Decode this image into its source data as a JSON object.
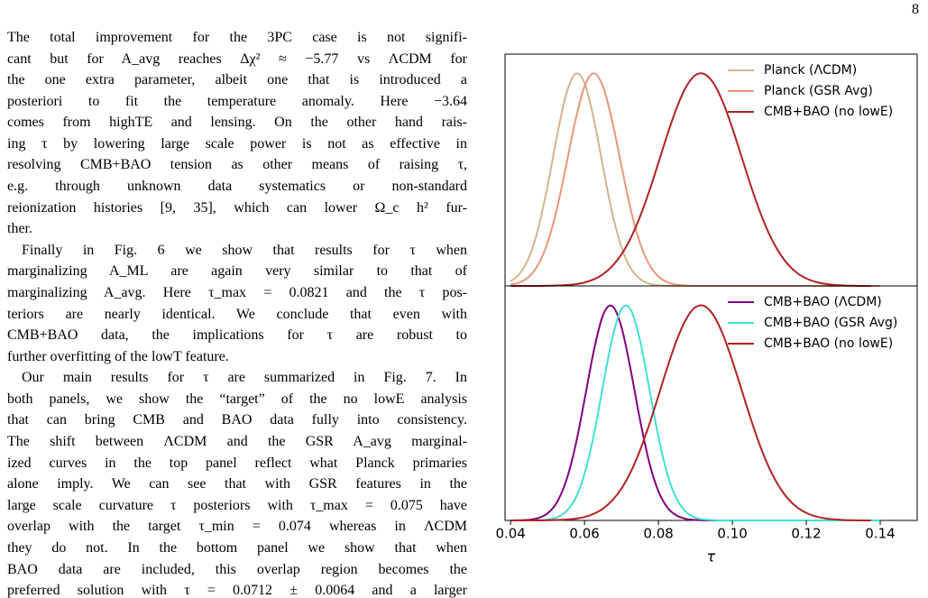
{
  "page_number": "8",
  "paragraphs": [
    [
      "The total improvement for the 3PC case is not signifi-",
      "cant but for A_avg reaches Δχ² ≈ −5.77 vs ΛCDM for",
      "the one extra parameter, albeit one that is introduced a",
      "posteriori to fit the temperature anomaly. Here −3.64",
      "comes from highTE and lensing. On the other hand rais-",
      "ing τ by lowering large scale power is not as effective in",
      "resolving CMB+BAO tension as other means of raising τ,",
      "e.g. through unknown data systematics or non-standard",
      "reionization histories [9, 35], which can lower Ω_c h² fur-",
      "ther."
    ],
    [
      "Finally in Fig. 6 we show that results for τ when",
      "marginalizing A_ML are again very similar to that of",
      "marginalizing A_avg. Here τ_max = 0.0821 and the τ pos-",
      "teriors are nearly identical. We conclude that even with",
      "CMB+BAO data, the implications for τ are robust to",
      "further overfitting of the lowT feature."
    ],
    [
      "Our main results for τ are summarized in Fig. 7. In",
      "both panels, we show the “target” of the no lowE analysis",
      "that can bring CMB and BAO data fully into consistency.",
      "The shift between ΛCDM and the GSR A_avg marginal-",
      "ized curves in the top panel reflect what Planck primaries",
      "alone imply. We can see that with GSR features in the",
      "large scale curvature τ posteriors with τ_max = 0.075 have",
      "overlap with the target τ_min = 0.074 whereas in ΛCDM",
      "they do not. In the bottom panel we show that when",
      "BAO data are included, this overlap region becomes the",
      "preferred solution with τ = 0.0712 ± 0.0064 and a larger"
    ]
  ],
  "chart_data": [
    {
      "type": "line",
      "legend": "upper right",
      "x": [
        0.04,
        0.0425,
        0.045,
        0.0475,
        0.05,
        0.0525,
        0.055,
        0.0575,
        0.06,
        0.0625,
        0.065,
        0.0675,
        0.07,
        0.0725,
        0.075,
        0.0775,
        0.08,
        0.0825,
        0.085,
        0.0875,
        0.09,
        0.0925,
        0.095,
        0.0975,
        0.1,
        0.1025,
        0.105,
        0.1075,
        0.11,
        0.1125,
        0.115,
        0.1175,
        0.12,
        0.1225,
        0.125,
        0.1275,
        0.13,
        0.1325,
        0.135,
        0.1375,
        0.14
      ],
      "xlim": [
        0.0385,
        0.15
      ],
      "ylim": [
        0,
        1.09
      ],
      "series": [
        {
          "name": "Planck (ΛCDM)",
          "color": "#d2b48c",
          "values": [
            0.022,
            0.058,
            0.135,
            0.271,
            0.469,
            0.699,
            0.899,
            0.997,
            0.954,
            0.787,
            0.56,
            0.343,
            0.182,
            0.083,
            0.033,
            0.011,
            0.003,
            0.001,
            0,
            0,
            0,
            0,
            0,
            0,
            0,
            0,
            0,
            0,
            0,
            0,
            0,
            0,
            0,
            0,
            0,
            0,
            0,
            0,
            0,
            0,
            0
          ]
        },
        {
          "name": "Planck (GSR Avg)",
          "color": "#e9967a",
          "values": [
            0.006,
            0.017,
            0.044,
            0.101,
            0.203,
            0.36,
            0.564,
            0.775,
            0.938,
            1,
            0.938,
            0.775,
            0.564,
            0.36,
            0.203,
            0.101,
            0.044,
            0.017,
            0.006,
            0.002,
            0,
            0,
            0,
            0,
            0,
            0,
            0,
            0,
            0,
            0,
            0,
            0,
            0,
            0,
            0,
            0,
            0,
            0,
            0,
            0,
            0
          ]
        },
        {
          "name": "CMB+BAO (no lowE)",
          "color": "#b22222",
          "values": [
            0,
            0,
            0,
            0,
            0.001,
            0.002,
            0.004,
            0.008,
            0.016,
            0.031,
            0.055,
            0.093,
            0.148,
            0.225,
            0.325,
            0.445,
            0.579,
            0.716,
            0.84,
            0.936,
            0.991,
            0.996,
            0.951,
            0.862,
            0.742,
            0.607,
            0.471,
            0.347,
            0.243,
            0.162,
            0.102,
            0.061,
            0.035,
            0.019,
            0.01,
            0.005,
            0.002,
            0.001,
            0,
            0,
            null
          ]
        }
      ]
    },
    {
      "type": "line",
      "legend": "upper right",
      "xlabel": "τ",
      "x": [
        0.04,
        0.0425,
        0.045,
        0.0475,
        0.05,
        0.0525,
        0.055,
        0.0575,
        0.06,
        0.0625,
        0.065,
        0.0675,
        0.07,
        0.0725,
        0.075,
        0.0775,
        0.08,
        0.0825,
        0.085,
        0.0875,
        0.09,
        0.0925,
        0.095,
        0.0975,
        0.1,
        0.1025,
        0.105,
        0.1075,
        0.11,
        0.1125,
        0.115,
        0.1175,
        0.12,
        0.1225,
        0.125,
        0.1275,
        0.13,
        0.1325,
        0.135,
        0.1375,
        0.14
      ],
      "xlim": [
        0.0385,
        0.15
      ],
      "ylim": [
        0,
        1.09
      ],
      "xticks": [
        0.04,
        0.06,
        0.08,
        {
          "value": 0.1,
          "label": "0.10"
        },
        0.12,
        0.14
      ],
      "series": [
        {
          "name": "CMB+BAO (ΛCDM)",
          "color": "#800080",
          "values": [
            0,
            0.001,
            0.003,
            0.011,
            0.033,
            0.083,
            0.182,
            0.343,
            0.56,
            0.787,
            0.954,
            0.997,
            0.899,
            0.699,
            0.469,
            0.271,
            0.135,
            0.058,
            0.022,
            0.007,
            0.002,
            0,
            0,
            0,
            0,
            0,
            0,
            0,
            0,
            0,
            0,
            0,
            0,
            0,
            0,
            0,
            0,
            0,
            0,
            0,
            0
          ]
        },
        {
          "name": "CMB+BAO (GSR Avg)",
          "color": "#40e0d0",
          "values": [
            0,
            0,
            0,
            0.001,
            0.004,
            0.014,
            0.041,
            0.101,
            0.216,
            0.396,
            0.625,
            0.846,
            0.983,
            0.98,
            0.838,
            0.616,
            0.389,
            0.21,
            0.098,
            0.039,
            0.013,
            0.004,
            0.001,
            0,
            0,
            0,
            0,
            0,
            0,
            0,
            0,
            0,
            0,
            0,
            0,
            0,
            0,
            0,
            0,
            0,
            0
          ]
        },
        {
          "name": "CMB+BAO (no lowE)",
          "color": "#b22222",
          "values": [
            0,
            0,
            0,
            0,
            0.001,
            0.002,
            0.004,
            0.008,
            0.016,
            0.031,
            0.055,
            0.093,
            0.148,
            0.225,
            0.325,
            0.445,
            0.579,
            0.716,
            0.84,
            0.936,
            0.991,
            0.996,
            0.951,
            0.862,
            0.742,
            0.607,
            0.471,
            0.347,
            0.243,
            0.162,
            0.102,
            0.061,
            0.035,
            0.019,
            0.01,
            0.005,
            0.002,
            0.001,
            0,
            0,
            null
          ]
        }
      ]
    }
  ]
}
